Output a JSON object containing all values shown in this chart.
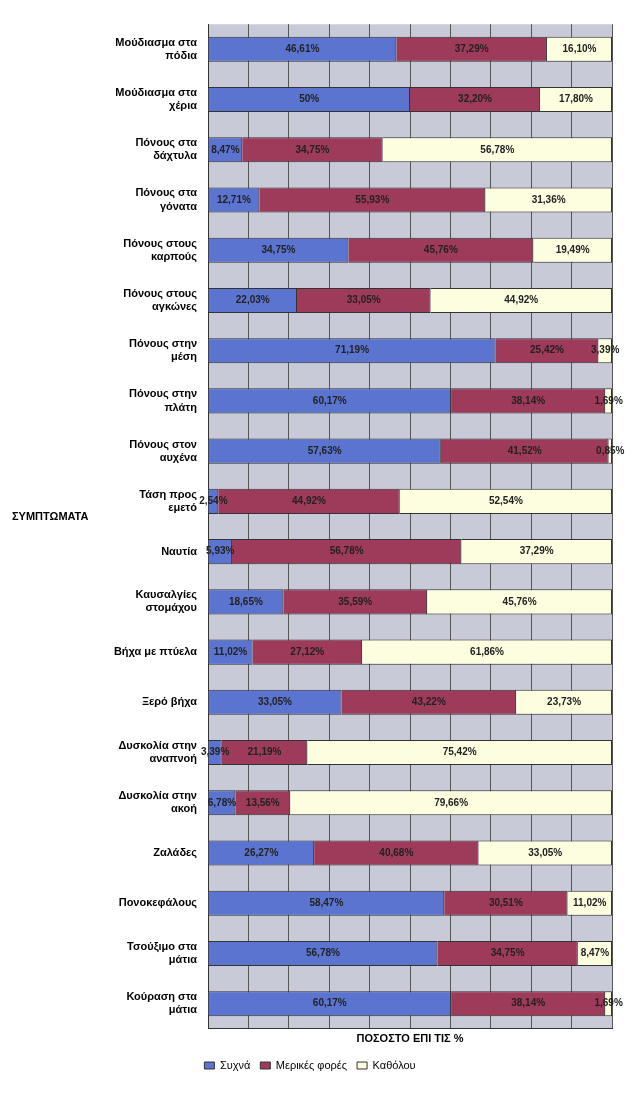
{
  "chart_data": {
    "type": "bar",
    "orientation": "horizontal",
    "stacked": true,
    "xlabel": "ΠΟΣΟΣΤΟ ΕΠΙ ΤΙΣ %",
    "ylabel": "ΣΥΜΠΤΩΜΑΤΑ",
    "categories": [
      "Μούδιασμα στα πόδια",
      "Μούδιασμα στα χέρια",
      "Πόνους στα δάχτυλα",
      "Πόνους στα γόνατα",
      "Πόνους στους καρπούς",
      "Πόνους στους αγκώνες",
      "Πόνους στην μέση",
      "Πόνους στην πλάτη",
      "Πόνους στον αυχένα",
      "Τάση προς εμετό",
      "Ναυτία",
      "Καυσαλγίες στομάχου",
      "Βήχα με πτύελα",
      "Ξερό βήχα",
      "Δυσκολία στην αναπνοή",
      "Δυσκολία στην ακοή",
      "Ζαλάδες",
      "Πονοκεφάλους",
      "Τσούξιμο στα μάτια",
      "Κούραση στα μάτια"
    ],
    "series": [
      {
        "name": "Συχνά",
        "color": "#5b74d0",
        "values": [
          46.61,
          50,
          8.47,
          12.71,
          34.75,
          22.03,
          71.19,
          60.17,
          57.63,
          2.54,
          5.93,
          18.65,
          11.02,
          33.05,
          3.39,
          6.78,
          26.27,
          58.47,
          56.78,
          60.17
        ],
        "value_labels": [
          "46,61%",
          "50%",
          "8,47%",
          "12,71%",
          "34,75%",
          "22,03%",
          "71,19%",
          "60,17%",
          "57,63%",
          "2,54%",
          "5,93%",
          "18,65%",
          "11,02%",
          "33,05%",
          "3,39%",
          "6,78%",
          "26,27%",
          "58,47%",
          "56,78%",
          "60,17%"
        ]
      },
      {
        "name": "Μερικές φορές",
        "color": "#9e3a5a",
        "values": [
          37.29,
          32.2,
          34.75,
          55.93,
          45.76,
          33.05,
          25.42,
          38.14,
          41.52,
          44.92,
          56.78,
          35.59,
          27.12,
          43.22,
          21.19,
          13.56,
          40.68,
          30.51,
          34.75,
          38.14
        ],
        "value_labels": [
          "37,29%",
          "32,20%",
          "34,75%",
          "55,93%",
          "45,76%",
          "33,05%",
          "25,42%",
          "38,14%",
          "41,52%",
          "44,92%",
          "56,78%",
          "35,59%",
          "27,12%",
          "43,22%",
          "21,19%",
          "13,56%",
          "40,68%",
          "30,51%",
          "34,75%",
          "38,14%"
        ]
      },
      {
        "name": "Καθόλου",
        "color": "#fdfde0",
        "values": [
          16.1,
          17.8,
          56.78,
          31.36,
          19.49,
          44.92,
          3.39,
          1.69,
          0.85,
          52.54,
          37.29,
          45.76,
          61.86,
          23.73,
          75.42,
          79.66,
          33.05,
          11.02,
          8.47,
          1.69
        ],
        "value_labels": [
          "16,10%",
          "17,80%",
          "56,78%",
          "31,36%",
          "19,49%",
          "44,92%",
          "3,39%",
          "1,69%",
          "0,85%",
          "52,54%",
          "37,29%",
          "45,76%",
          "61,86%",
          "23,73%",
          "75,42%",
          "79,66%",
          "33,05%",
          "11,02%",
          "8,47%",
          "1,69%"
        ]
      }
    ],
    "xlim": [
      0,
      100
    ],
    "xticks": [
      {
        "value": 0,
        "label": null
      },
      {
        "value": 10,
        "label": null
      },
      {
        "value": 20,
        "label": null
      },
      {
        "value": 30,
        "label": null
      },
      {
        "value": 40,
        "label": null
      },
      {
        "value": 50,
        "label": null
      },
      {
        "value": 60,
        "label": null
      },
      {
        "value": 70,
        "label": null
      },
      {
        "value": 80,
        "label": null
      },
      {
        "value": 90,
        "label": null
      },
      {
        "value": 100,
        "label": null
      }
    ],
    "tick_labels": "y",
    "grid": "x",
    "legend": "bottom"
  }
}
